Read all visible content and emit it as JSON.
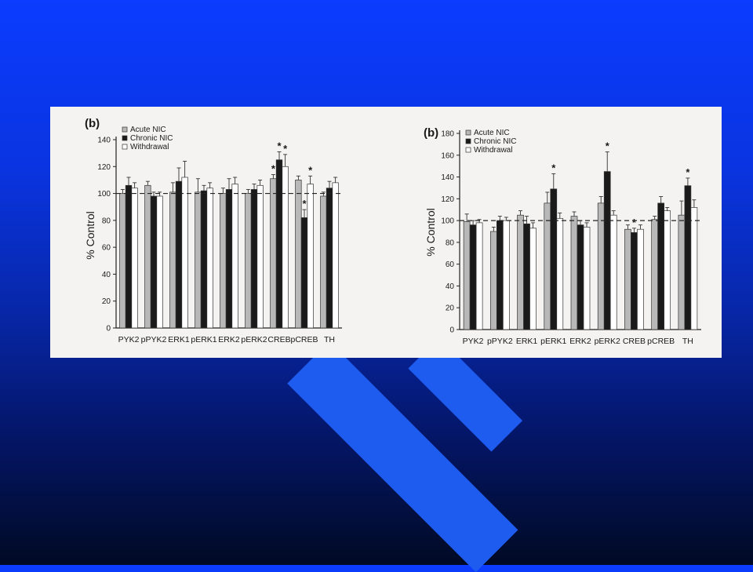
{
  "chart_data": [
    {
      "type": "bar",
      "panel_label": "(b)",
      "ylabel": "% Control",
      "ylim": [
        0,
        140
      ],
      "yticks": [
        0,
        20,
        40,
        60,
        80,
        100,
        120,
        140
      ],
      "reference_line": 100,
      "categories": [
        "PYK2",
        "pPYK2",
        "ERK1",
        "pERK1",
        "ERK2",
        "pERK2",
        "CREB",
        "pCREB",
        "TH"
      ],
      "legend_position": "top-left",
      "series": [
        {
          "name": "Acute NIC",
          "color": "#b8b8b8",
          "values": [
            100,
            106,
            101,
            101,
            100,
            100,
            111,
            110,
            98
          ],
          "errors": [
            3,
            3,
            7,
            10,
            4,
            3,
            3,
            3,
            3
          ]
        },
        {
          "name": "Chronic NIC",
          "color": "#1a1a1a",
          "values": [
            106,
            98,
            109,
            102,
            103,
            103,
            125,
            82,
            104
          ],
          "errors": [
            6,
            3,
            10,
            4,
            8,
            4,
            6,
            6,
            5
          ]
        },
        {
          "name": "Withdrawal",
          "color": "#ffffff",
          "values": [
            104,
            98,
            112,
            104,
            107,
            106,
            120,
            107,
            108
          ],
          "errors": [
            4,
            3,
            12,
            4,
            5,
            4,
            9,
            6,
            4
          ]
        }
      ],
      "annotations": [
        {
          "category": "CREB",
          "series": "Acute NIC",
          "text": "*"
        },
        {
          "category": "CREB",
          "series": "Chronic NIC",
          "text": "*"
        },
        {
          "category": "CREB",
          "series": "Withdrawal",
          "text": "*"
        },
        {
          "category": "pCREB",
          "series": "Chronic NIC",
          "text": "*"
        },
        {
          "category": "pCREB",
          "series": "Withdrawal",
          "text": "*"
        }
      ]
    },
    {
      "type": "bar",
      "panel_label": "(b)",
      "ylabel": "% Control",
      "ylim": [
        0,
        180
      ],
      "yticks": [
        0,
        20,
        40,
        60,
        80,
        100,
        120,
        140,
        160,
        180
      ],
      "reference_line": 100,
      "categories": [
        "PYK2",
        "pPYK2",
        "ERK1",
        "pERK1",
        "ERK2",
        "pERK2",
        "CREB",
        "pCREB",
        "TH"
      ],
      "legend_position": "top-left",
      "series": [
        {
          "name": "Acute NIC",
          "color": "#b8b8b8",
          "values": [
            99,
            90,
            105,
            116,
            104,
            116,
            92,
            101,
            105
          ],
          "errors": [
            7,
            4,
            4,
            10,
            4,
            6,
            4,
            3,
            13
          ]
        },
        {
          "name": "Chronic NIC",
          "color": "#1a1a1a",
          "values": [
            96,
            100,
            97,
            129,
            96,
            145,
            89,
            116,
            132
          ],
          "errors": [
            4,
            4,
            7,
            14,
            4,
            18,
            4,
            6,
            7
          ]
        },
        {
          "name": "Withdrawal",
          "color": "#ffffff",
          "values": [
            98,
            100,
            93,
            102,
            94,
            105,
            92,
            109,
            112
          ],
          "errors": [
            3,
            3,
            5,
            5,
            4,
            4,
            4,
            3,
            7
          ]
        }
      ],
      "annotations": [
        {
          "category": "pERK1",
          "series": "Chronic NIC",
          "text": "*"
        },
        {
          "category": "pERK2",
          "series": "Chronic NIC",
          "text": "*"
        },
        {
          "category": "CREB",
          "series": "Chronic NIC",
          "text": "*"
        },
        {
          "category": "TH",
          "series": "Chronic NIC",
          "text": "*"
        }
      ]
    }
  ]
}
